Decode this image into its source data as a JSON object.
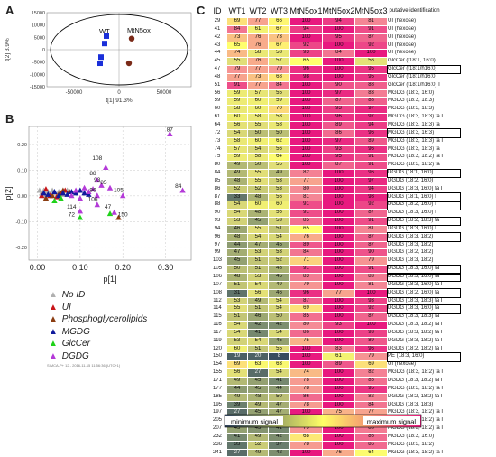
{
  "panels": {
    "a": "A",
    "b": "B",
    "c": "C"
  },
  "chart_data": [
    {
      "type": "scatter",
      "xlabel": "t[1]  91.3%",
      "ylabel": "t[2]  3.9%",
      "xlim": [
        -80000,
        80000
      ],
      "ylim": [
        -15000,
        15000
      ],
      "xticks": [
        -50000,
        0,
        50000
      ],
      "yticks": [
        -15000,
        -10000,
        -5000,
        0,
        5000,
        10000,
        15000
      ],
      "x_tick_labels": [
        "-50000",
        "0",
        "50000"
      ],
      "y_tick_labels": [
        "-15000",
        "-10000",
        "-5000",
        "0",
        "5000",
        "10000",
        "15000"
      ],
      "labels": [
        {
          "text": "WT",
          "x": -22000,
          "y": 6500
        },
        {
          "text": "MtN5ox",
          "x": 9000,
          "y": 7000
        }
      ],
      "series": [
        {
          "name": "WT",
          "color": "#1a2fd9",
          "shape": "square",
          "points": [
            [
              -14000,
              5500
            ],
            [
              -16000,
              2500
            ],
            [
              -20000,
              -3000
            ],
            [
              -21000,
              -5500
            ]
          ]
        },
        {
          "name": "MtN5ox",
          "color": "#7a2a18",
          "shape": "circle",
          "points": [
            [
              14000,
              4500
            ],
            [
              11000,
              -5500
            ]
          ]
        }
      ]
    },
    {
      "type": "scatter",
      "xlabel": "p[1]",
      "ylabel": "p[2]",
      "xlim": [
        -0.02,
        0.36
      ],
      "ylim": [
        -0.25,
        0.27
      ],
      "xticks": [
        0.0,
        0.1,
        0.2,
        0.3
      ],
      "yticks": [
        -0.2,
        -0.1,
        0.0,
        0.1,
        0.2
      ],
      "x_tick_labels": [
        "0.00",
        "0.10",
        "0.20",
        "0.30"
      ],
      "y_tick_labels": [
        "-0.20",
        "-0.10",
        "0.00",
        "0.10",
        "0.20"
      ],
      "annotations": [
        {
          "text": "87",
          "x": 0.31,
          "y": 0.24
        },
        {
          "text": "84",
          "x": 0.33,
          "y": 0.02
        },
        {
          "text": "108",
          "x": 0.14,
          "y": 0.13
        },
        {
          "text": "88",
          "x": 0.13,
          "y": 0.07
        },
        {
          "text": "85",
          "x": 0.155,
          "y": 0.035
        },
        {
          "text": "93",
          "x": 0.14,
          "y": 0.045
        },
        {
          "text": "96",
          "x": 0.13,
          "y": 0.005
        },
        {
          "text": "105",
          "x": 0.19,
          "y": 0.005
        },
        {
          "text": "106",
          "x": 0.13,
          "y": -0.03
        },
        {
          "text": "114",
          "x": 0.08,
          "y": -0.06
        },
        {
          "text": "47",
          "x": 0.165,
          "y": -0.06
        },
        {
          "text": "72",
          "x": 0.08,
          "y": -0.09
        },
        {
          "text": "150",
          "x": 0.2,
          "y": -0.09
        }
      ],
      "series": [
        {
          "name": "No ID",
          "color": "#b0b0b0",
          "points": [
            [
              0.005,
              0.02
            ],
            [
              0.01,
              0.01
            ],
            [
              0.015,
              0.02
            ],
            [
              0.02,
              0.0
            ],
            [
              0.025,
              0.015
            ],
            [
              0.03,
              0.005
            ],
            [
              0.035,
              0.02
            ],
            [
              0.04,
              0.01
            ],
            [
              0.05,
              0.015
            ],
            [
              0.06,
              0.005
            ],
            [
              0.07,
              0.02
            ]
          ]
        },
        {
          "name": "UI",
          "color": "#c8161a",
          "points": [
            [
              0.01,
              0.0
            ],
            [
              0.02,
              0.025
            ],
            [
              0.03,
              0.0
            ],
            [
              0.045,
              -0.005
            ],
            [
              0.055,
              0.01
            ],
            [
              0.065,
              0.02
            ]
          ]
        },
        {
          "name": "Phosphoglycerolipids",
          "color": "#8b3d12",
          "points": [
            [
              0.02,
              -0.01
            ],
            [
              0.035,
              0.0
            ],
            [
              0.05,
              0.005
            ],
            [
              0.06,
              0.02
            ],
            [
              0.075,
              0.015
            ],
            [
              0.19,
              -0.085
            ]
          ]
        },
        {
          "name": "MGDG",
          "color": "#101a9c",
          "points": [
            [
              0.015,
              0.01
            ],
            [
              0.025,
              0.005
            ],
            [
              0.04,
              0.015
            ],
            [
              0.05,
              0.0
            ],
            [
              0.06,
              0.01
            ],
            [
              0.07,
              0.005
            ],
            [
              0.08,
              0.015
            ],
            [
              0.09,
              0.01
            ],
            [
              0.1,
              0.02
            ],
            [
              0.11,
              0.01
            ],
            [
              0.12,
              0.005
            ]
          ]
        },
        {
          "name": "GlcCer",
          "color": "#1fd219",
          "points": [
            [
              0.04,
              -0.02
            ],
            [
              0.055,
              -0.01
            ],
            [
              0.1,
              -0.085
            ],
            [
              0.17,
              -0.07
            ]
          ]
        },
        {
          "name": "DGDG",
          "color": "#b43ad8",
          "points": [
            [
              0.31,
              0.24
            ],
            [
              0.34,
              0.02
            ],
            [
              0.16,
              0.11
            ],
            [
              0.14,
              0.06
            ],
            [
              0.17,
              0.03
            ],
            [
              0.15,
              0.04
            ],
            [
              0.14,
              0.0
            ],
            [
              0.2,
              0.0
            ],
            [
              0.14,
              -0.035
            ],
            [
              0.1,
              -0.06
            ],
            [
              0.18,
              -0.065
            ],
            [
              0.08,
              0.0
            ],
            [
              0.09,
              0.02
            ],
            [
              0.1,
              -0.01
            ],
            [
              0.12,
              0.015
            ],
            [
              0.13,
              0.025
            ],
            [
              0.11,
              0.03
            ]
          ]
        }
      ]
    }
  ],
  "legend": {
    "items": [
      {
        "label": "No ID",
        "color": "#b0b0b0"
      },
      {
        "label": "UI",
        "color": "#c8161a"
      },
      {
        "label": "Phosphoglycerolipids",
        "color": "#8b3d12"
      },
      {
        "label": "MGDG",
        "color": "#101a9c"
      },
      {
        "label": "GlcCer",
        "color": "#1fd219"
      },
      {
        "label": "DGDG",
        "color": "#b43ad8"
      }
    ],
    "footnote": "SIMCA-P+ 12 - 2016-11-15 11:56:36 (UTC+1)"
  },
  "heatmap": {
    "headers": [
      "ID",
      "WT1",
      "WT2",
      "WT3",
      "MtN5ox1",
      "MtN5ox2",
      "MtN5ox3",
      "putative identification"
    ],
    "rows": [
      {
        "id": "29",
        "v": [
          69,
          77,
          66,
          100,
          94,
          81
        ],
        "p": "UI (hexose)"
      },
      {
        "id": "41",
        "v": [
          84,
          61,
          67,
          94,
          100,
          91
        ],
        "p": "UI (hexose)"
      },
      {
        "id": "42",
        "v": [
          73,
          76,
          73,
          100,
          95,
          87
        ],
        "p": "UI (hexose)"
      },
      {
        "id": "43",
        "v": [
          65,
          76,
          67,
          92,
          100,
          92
        ],
        "p": "UI (hexose) I"
      },
      {
        "id": "44",
        "v": [
          74,
          58,
          58,
          93,
          84,
          100
        ],
        "p": "UI (hexose) I"
      },
      {
        "id": "45",
        "v": [
          55,
          76,
          57,
          65,
          100,
          56
        ],
        "p": "GlcCer (t18:1, 16:0)"
      },
      {
        "id": "47",
        "v": [
          79,
          77,
          79,
          96,
          100,
          95
        ],
        "p": "GlcCer (t18:1/h16:0)",
        "boxed": true
      },
      {
        "id": "48",
        "v": [
          77,
          73,
          68,
          98,
          100,
          95
        ],
        "p": "GlcCer (t18:1/h16:0)"
      },
      {
        "id": "51",
        "v": [
          91,
          77,
          84,
          100,
          90,
          88
        ],
        "p": "GlcCer (t18:1/h16:0) I"
      },
      {
        "id": "56",
        "v": [
          59,
          57,
          55,
          100,
          97,
          83
        ],
        "p": "MGDG (18:3, 16:0)"
      },
      {
        "id": "59",
        "v": [
          59,
          60,
          59,
          100,
          87,
          88
        ],
        "p": "MGDG (18:3, 18:3)"
      },
      {
        "id": "60",
        "v": [
          58,
          60,
          70,
          100,
          93,
          97
        ],
        "p": "MGDG (18:3, 18:3) I"
      },
      {
        "id": "61",
        "v": [
          60,
          58,
          58,
          100,
          96,
          97
        ],
        "p": "MGDG (18:3, 18:3) fa I"
      },
      {
        "id": "64",
        "v": [
          56,
          55,
          58,
          100,
          89,
          94
        ],
        "p": "MGDG (18:3, 18:3) fa"
      },
      {
        "id": "72",
        "v": [
          54,
          50,
          50,
          100,
          86,
          96
        ],
        "p": "MGDG (18:3, 16:3)",
        "boxed": true
      },
      {
        "id": "73",
        "v": [
          58,
          60,
          62,
          100,
          97,
          89
        ],
        "p": "MGDG (18:3, 18:3) fa I"
      },
      {
        "id": "74",
        "v": [
          57,
          54,
          56,
          100,
          93,
          96
        ],
        "p": "MGDG (18:3, 18:3) fa"
      },
      {
        "id": "75",
        "v": [
          59,
          58,
          64,
          100,
          95,
          91
        ],
        "p": "MGDG (18:3, 18:2) fa I"
      },
      {
        "id": "80",
        "v": [
          49,
          50,
          55,
          100,
          87,
          91
        ],
        "p": "MGDG (18:3, 18:2) fa"
      },
      {
        "id": "84",
        "v": [
          49,
          55,
          49,
          82,
          100,
          96
        ],
        "p": "DGDG (18:1, 16:0)",
        "boxed": true
      },
      {
        "id": "85",
        "v": [
          48,
          55,
          53,
          77,
          100,
          97
        ],
        "p": "DGDG (18:2, 16:0)"
      },
      {
        "id": "86",
        "v": [
          52,
          52,
          53,
          80,
          100,
          94
        ],
        "p": "DGDG (18:3, 16:0) fa I"
      },
      {
        "id": "87",
        "v": [
          33,
          48,
          56,
          81,
          100,
          98
        ],
        "p": "DGDG (18:1, 16:0) I",
        "boxed": true
      },
      {
        "id": "88",
        "v": [
          54,
          60,
          60,
          91,
          100,
          92
        ],
        "p": "DGDG (18:2, 16:0) I",
        "boxed": true
      },
      {
        "id": "90",
        "v": [
          54,
          48,
          56,
          91,
          100,
          87
        ],
        "p": "DGDG (18:3, 16:0) I"
      },
      {
        "id": "93",
        "v": [
          53,
          45,
          53,
          85,
          100,
          91
        ],
        "p": "DGDG (18:2, 18:3) fa",
        "boxed": true
      },
      {
        "id": "94",
        "v": [
          46,
          55,
          51,
          65,
          100,
          81
        ],
        "p": "DGDG (18:3, 16:0) I"
      },
      {
        "id": "96",
        "v": [
          48,
          54,
          54,
          76,
          100,
          87
        ],
        "p": "DGDG (18:3, 18:2)",
        "boxed": true
      },
      {
        "id": "97",
        "v": [
          44,
          47,
          45,
          89,
          100,
          87
        ],
        "p": "DGDG (18:3, 18:2)"
      },
      {
        "id": "99",
        "v": [
          47,
          53,
          53,
          84,
          100,
          90
        ],
        "p": "DGDG (18:2, 18:2)"
      },
      {
        "id": "103",
        "v": [
          45,
          51,
          52,
          71,
          100,
          79
        ],
        "p": "DGDG (18:3, 18:2)"
      },
      {
        "id": "105",
        "v": [
          50,
          51,
          48,
          91,
          100,
          91
        ],
        "p": "DGDG (18:3, 16:0) fa",
        "boxed": true
      },
      {
        "id": "106",
        "v": [
          48,
          53,
          45,
          83,
          100,
          83
        ],
        "p": "DGDG (18:3, 16:0) fa",
        "boxed": true
      },
      {
        "id": "107",
        "v": [
          51,
          54,
          49,
          79,
          100,
          81
        ],
        "p": "DGDG (18:3, 16:0) fa I"
      },
      {
        "id": "108",
        "v": [
          31,
          56,
          46,
          96,
          77,
          100
        ],
        "p": "DGDG (18:2, 16:0) fa",
        "boxed": true
      },
      {
        "id": "112",
        "v": [
          53,
          49,
          54,
          87,
          100,
          93
        ],
        "p": "DGDG (18:3, 18:3) fa I"
      },
      {
        "id": "114",
        "v": [
          55,
          51,
          54,
          69,
          100,
          92
        ],
        "p": "DGDG (18:3, 16:0) fa",
        "boxed": true
      },
      {
        "id": "115",
        "v": [
          51,
          46,
          50,
          85,
          100,
          87
        ],
        "p": "DGDG (18:3, 18:3) fa"
      },
      {
        "id": "116",
        "v": [
          54,
          42,
          42,
          80,
          93,
          100
        ],
        "p": "DGDG (18:3, 18:2) fa I"
      },
      {
        "id": "117",
        "v": [
          54,
          41,
          54,
          86,
          100,
          93
        ],
        "p": "DGDG (18:3, 18:2) fa I"
      },
      {
        "id": "119",
        "v": [
          53,
          54,
          45,
          75,
          100,
          89
        ],
        "p": "DGDG (18:3, 18:2) fa I"
      },
      {
        "id": "120",
        "v": [
          60,
          51,
          55,
          100,
          83,
          96
        ],
        "p": "DGDG (18:2, 18:2) fa I"
      },
      {
        "id": "150",
        "v": [
          19,
          20,
          8,
          100,
          61,
          79
        ],
        "p": "PE (18:3, 16:0)",
        "boxed": true,
        "sep": true
      },
      {
        "id": "154",
        "v": [
          69,
          63,
          63,
          100,
          89,
          69
        ],
        "p": "UI (hexose) I"
      },
      {
        "id": "155",
        "v": [
          56,
          27,
          54,
          74,
          100,
          82
        ],
        "p": "MGDG (18:3, 18:2) fa I"
      },
      {
        "id": "171",
        "v": [
          49,
          45,
          41,
          78,
          100,
          85
        ],
        "p": "DGDG (18:3, 18:2) fa I"
      },
      {
        "id": "177",
        "v": [
          44,
          45,
          44,
          78,
          100,
          95
        ],
        "p": "MGDG (18:3, 18:2) fa I"
      },
      {
        "id": "185",
        "v": [
          49,
          48,
          50,
          86,
          100,
          82
        ],
        "p": "DGDG (18:2, 18:2) fa I"
      },
      {
        "id": "195",
        "v": [
          39,
          49,
          47,
          78,
          100,
          84
        ],
        "p": "DGDG (18:3, 18:3)"
      },
      {
        "id": "197",
        "v": [
          27,
          45,
          47,
          100,
          75,
          77
        ],
        "p": "MGDG (18:3, 18:2) fa I"
      },
      {
        "id": "205",
        "v": [
          40,
          49,
          49,
          75,
          100,
          80
        ],
        "p": "MGDG (18:3, 18:2) fa I"
      },
      {
        "id": "207",
        "v": [
          45,
          43,
          41,
          79,
          100,
          83
        ],
        "p": "MGDG (18:3, 18:2) fa I"
      },
      {
        "id": "232",
        "v": [
          41,
          49,
          42,
          68,
          100,
          86
        ],
        "p": "MGDG (18:3, 16:0)"
      },
      {
        "id": "236",
        "v": [
          33,
          52,
          37,
          78,
          100,
          86
        ],
        "p": "MGDG (18:3, 18:2)"
      },
      {
        "id": "241",
        "v": [
          27,
          49,
          42,
          100,
          76,
          64
        ],
        "p": "MGDG (18:3, 18:2) fa I"
      }
    ],
    "scale": {
      "min_label": "minimum signal",
      "max_label": "maximum signal"
    }
  }
}
